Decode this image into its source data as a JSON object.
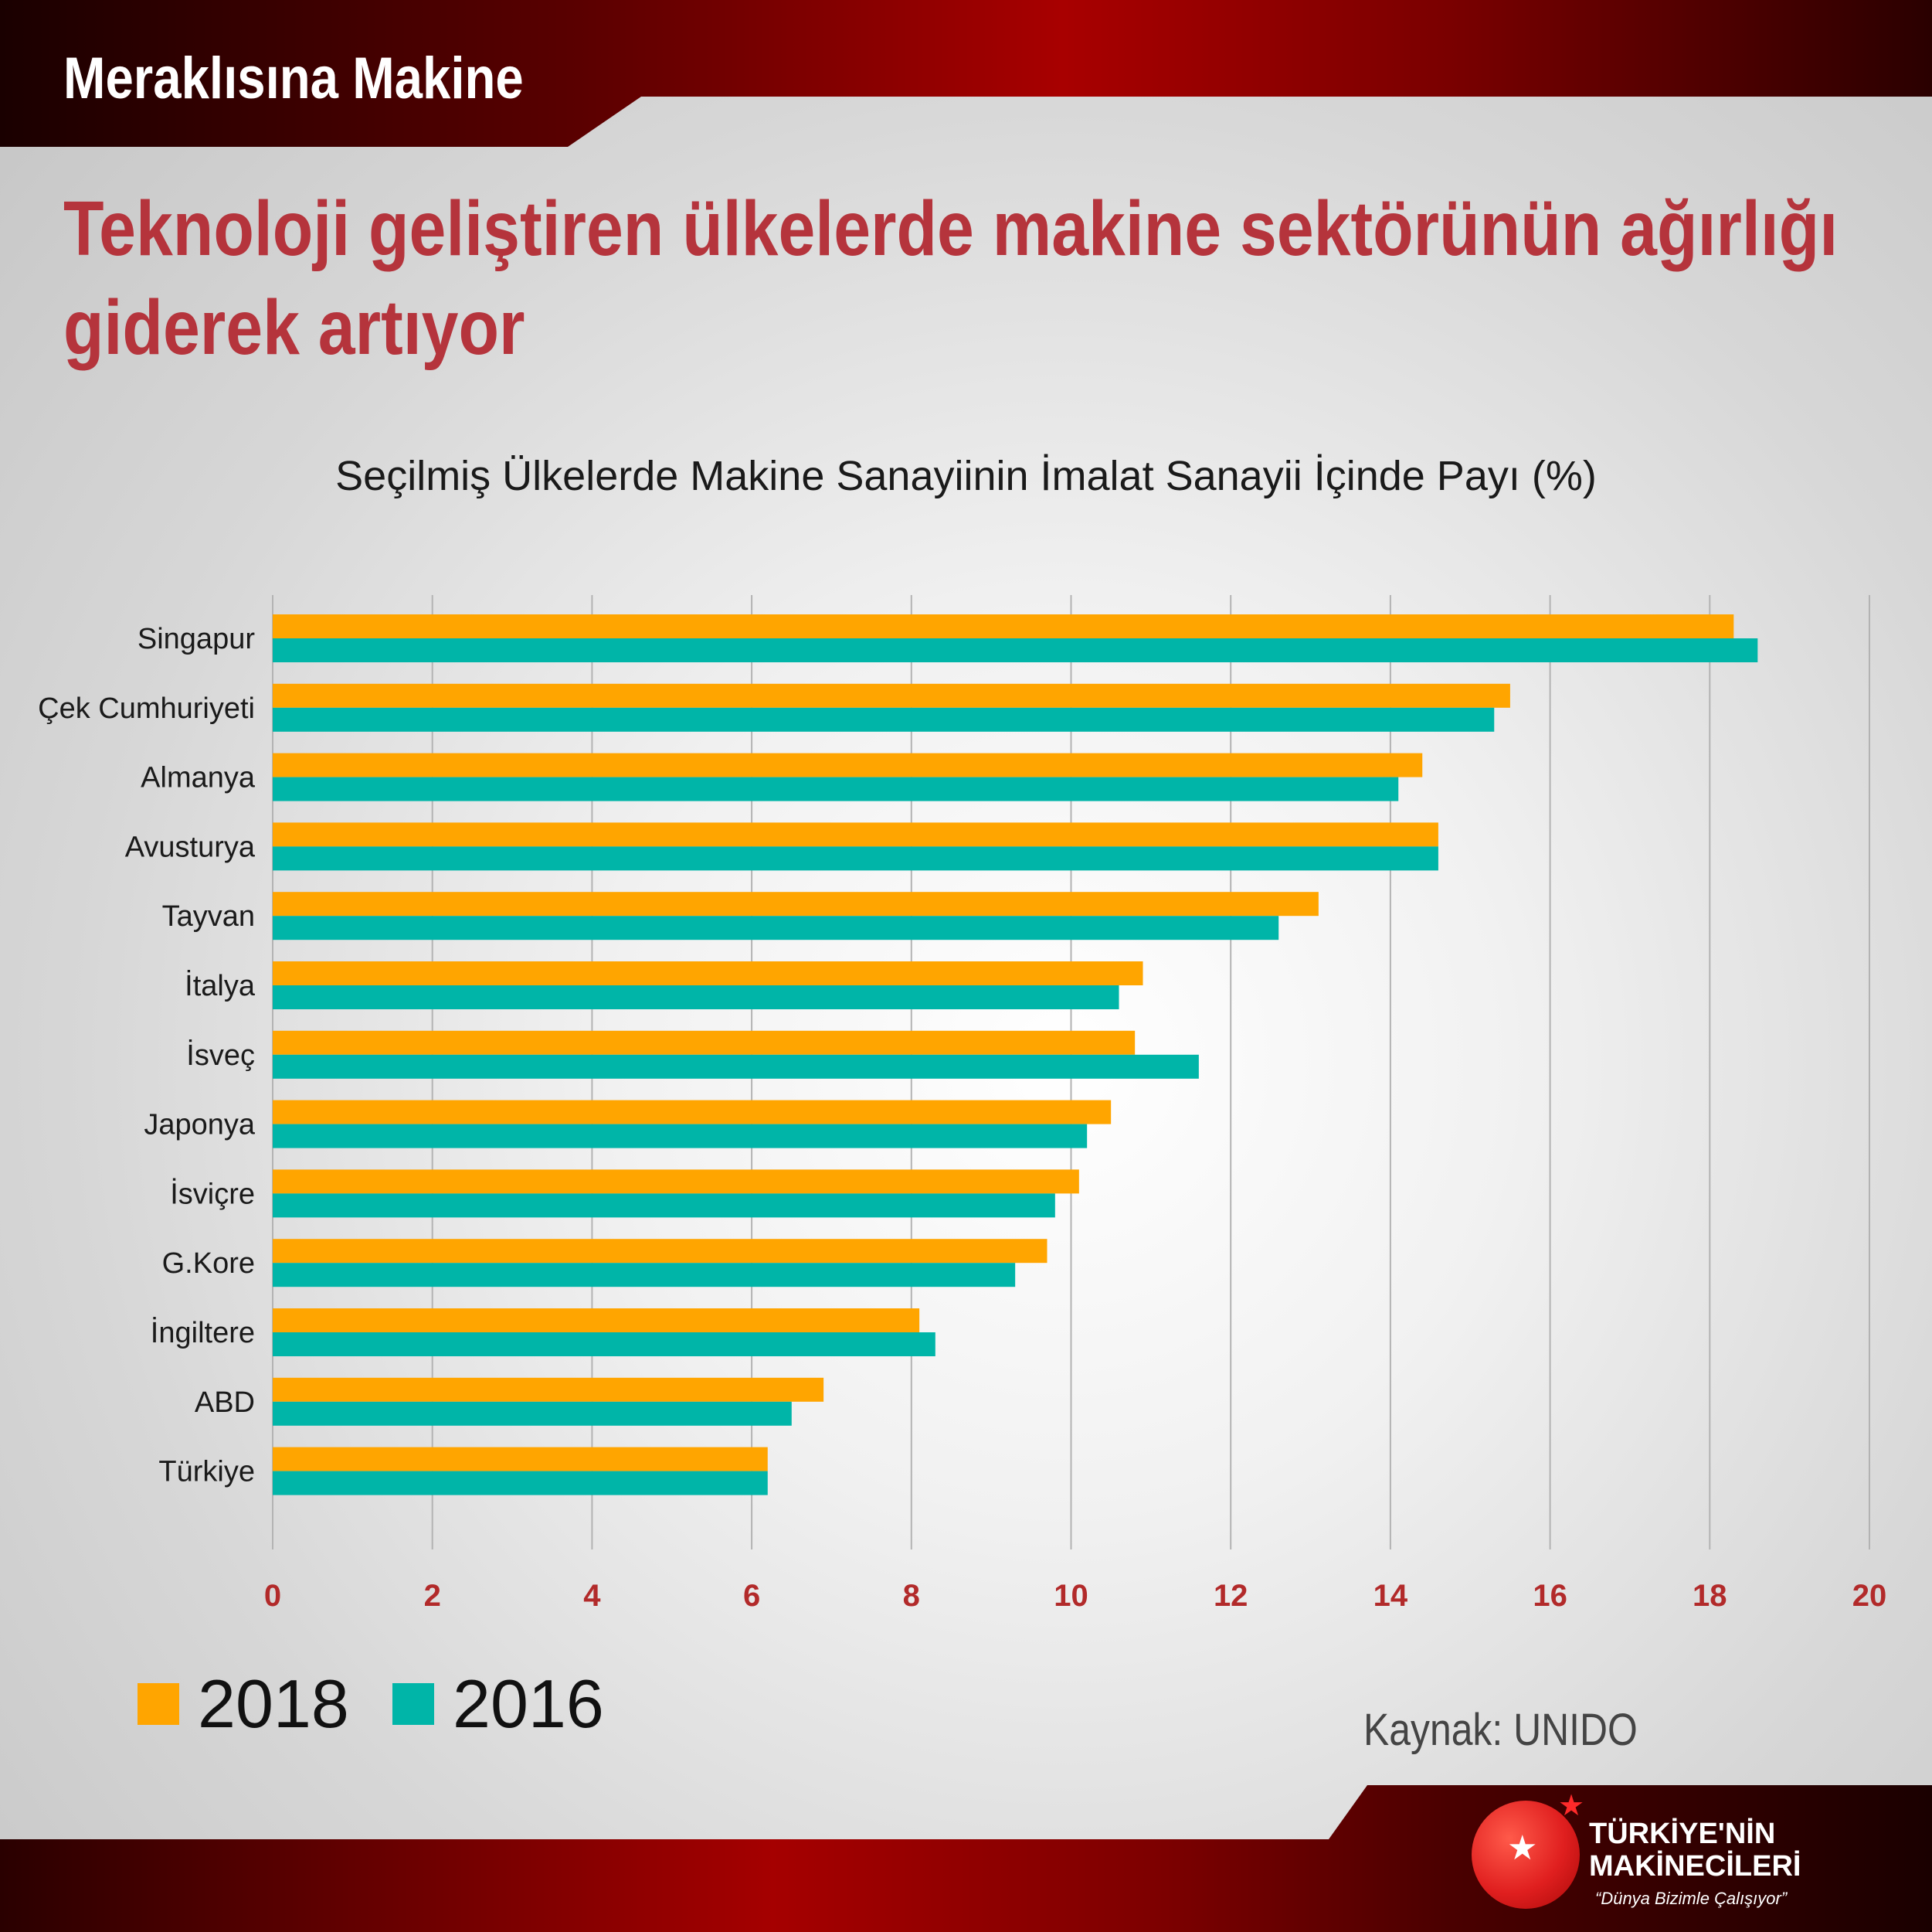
{
  "header": {
    "brand": "Meraklısına Makine"
  },
  "headline": {
    "line1": "Teknoloji geliştiren ülkelerde makine sektörünün ağırlığı",
    "line2": "giderek artıyor"
  },
  "source": "Kaynak: UNIDO",
  "logo": {
    "line1": "TÜRKİYE'NİN",
    "line2": "MAKİNECİLERİ",
    "tagline": "“Dünya Bizimle Çalışıyor”",
    "icon": "star-icon"
  },
  "colors": {
    "bar_2018": "#ffa500",
    "bar_2016": "#00b5a8",
    "gridline": "#b3b3b3",
    "tick_label": "#b22a2a",
    "headline": "#b5343c"
  },
  "chart_data": {
    "type": "bar",
    "orientation": "horizontal",
    "title": "Seçilmiş Ülkelerde Makine Sanayiinin İmalat Sanayii İçinde Payı (%)",
    "xlabel": "",
    "ylabel": "",
    "xlim": [
      0,
      20
    ],
    "xticks": [
      0,
      2,
      4,
      6,
      8,
      10,
      12,
      14,
      16,
      18,
      20
    ],
    "grid": true,
    "legend_position": "bottom-left",
    "categories": [
      "Singapur",
      "Çek Cumhuriyeti",
      "Almanya",
      "Avusturya",
      "Tayvan",
      "İtalya",
      "İsveç",
      "Japonya",
      "İsviçre",
      "G.Kore",
      "İngiltere",
      "ABD",
      "Türkiye"
    ],
    "series": [
      {
        "name": "2018",
        "color": "#ffa500",
        "values": [
          18.3,
          15.5,
          14.4,
          14.6,
          13.1,
          10.9,
          10.8,
          10.5,
          10.1,
          9.7,
          8.1,
          6.9,
          6.2
        ]
      },
      {
        "name": "2016",
        "color": "#00b5a8",
        "values": [
          18.6,
          15.3,
          14.1,
          14.6,
          12.6,
          10.6,
          11.6,
          10.2,
          9.8,
          9.3,
          8.3,
          6.5,
          6.2
        ]
      }
    ]
  }
}
